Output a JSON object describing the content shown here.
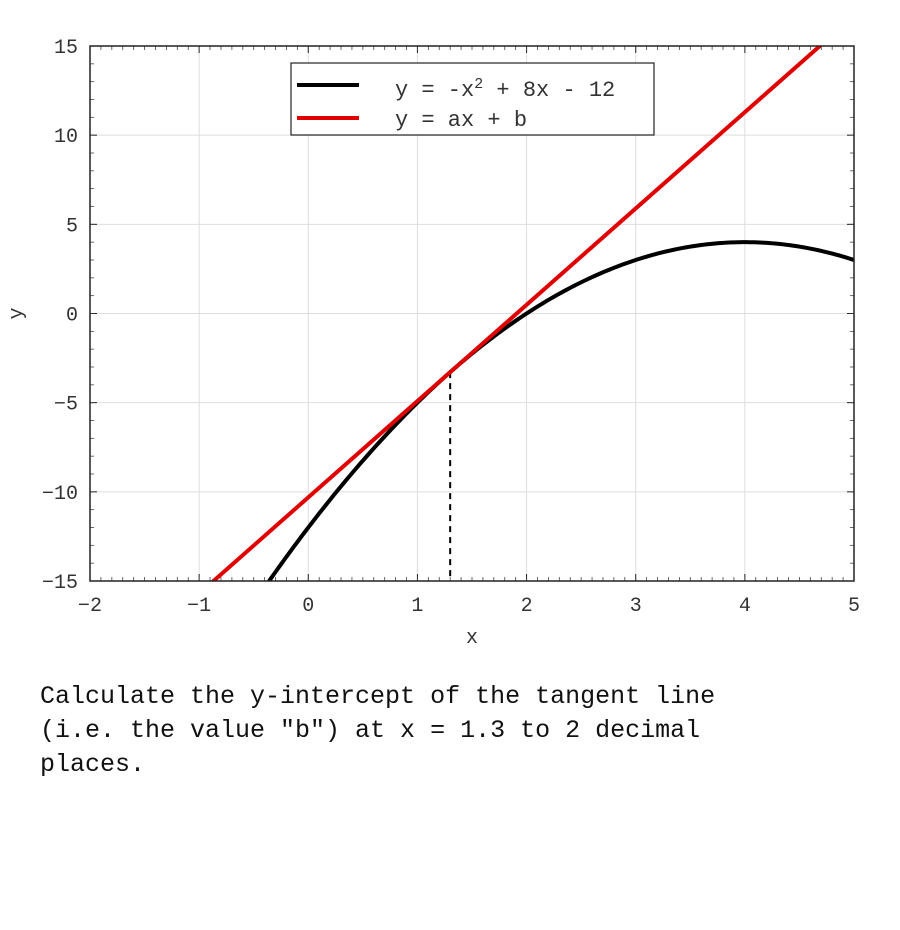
{
  "chart_data": {
    "type": "line",
    "xlabel": "x",
    "ylabel": "y",
    "xlim": [
      -2,
      5
    ],
    "ylim": [
      -15,
      15
    ],
    "xticks": [
      -2,
      -1,
      0,
      1,
      2,
      3,
      4,
      5
    ],
    "yticks": [
      -15,
      -10,
      -5,
      0,
      5,
      10,
      15
    ],
    "grid": true,
    "legend_position": "top-center",
    "series": [
      {
        "name": "y = -x² + 8x - 12",
        "legend_base": "y = -x",
        "legend_sup": "2",
        "legend_rest": " + 8x - 12",
        "kind": "curve",
        "coefficients": {
          "a2": -1,
          "a1": 8,
          "a0": -12
        },
        "color": "#000000"
      },
      {
        "name": "y = ax + b",
        "legend_base": "y = ax + b",
        "kind": "tangent",
        "tangent_at_x": 1.3,
        "color": "#e00000"
      }
    ],
    "marker_x": 1.3
  },
  "question": "Calculate the y-intercept of the tangent line\n(i.e. the value \"b\") at x = 1.3 to 2 decimal\nplaces."
}
